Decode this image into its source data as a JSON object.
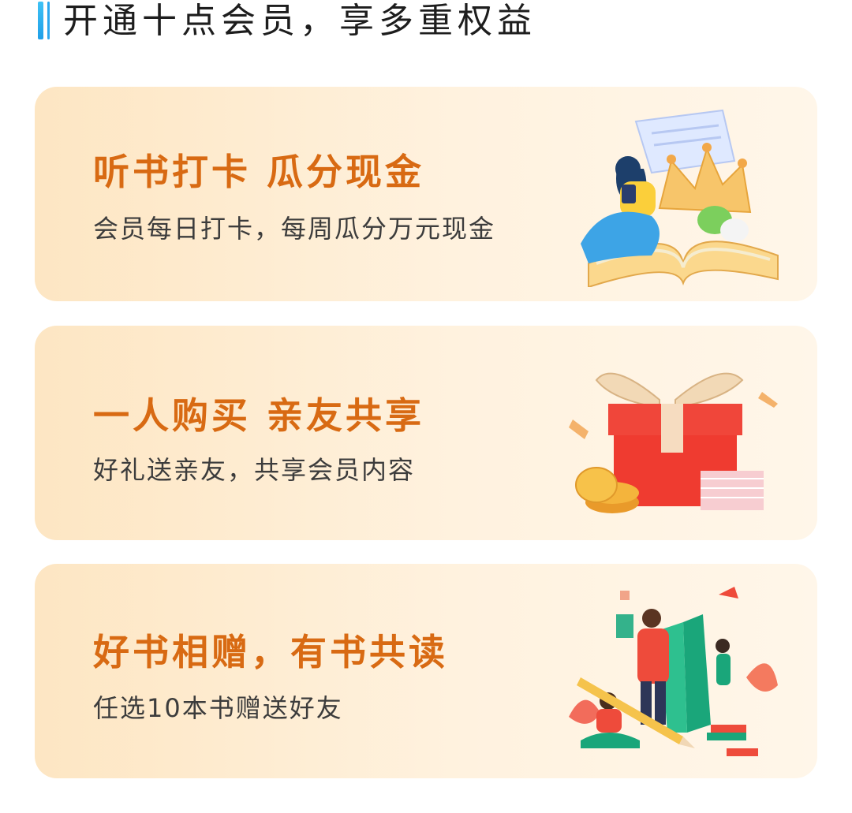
{
  "header": {
    "title": "开通十点会员，享多重权益"
  },
  "benefits": [
    {
      "title": "听书打卡 瓜分现金",
      "description": "会员每日打卡，每周瓜分万元现金",
      "illustration": "reading-book-crown-icon"
    },
    {
      "title": "一人购买 亲友共享",
      "description": "好礼送亲友，共享会员内容",
      "illustration": "gift-box-icon"
    },
    {
      "title": "好书相赠，有书共读",
      "description": "任选10本书赠送好友",
      "illustration": "reading-people-icon"
    }
  ],
  "colors": {
    "accent": "#2aa6ee",
    "title_orange": "#d86a13",
    "card_bg_start": "#fde6c3",
    "card_bg_end": "#fff6e9"
  }
}
